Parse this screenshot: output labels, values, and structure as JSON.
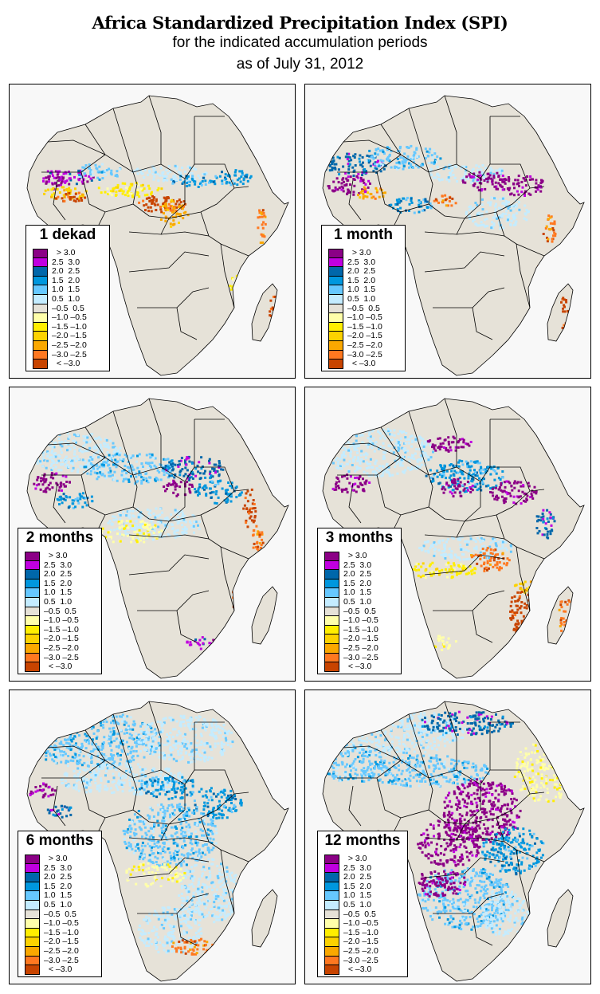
{
  "header": {
    "title": "Africa Standardized Precipitation Index (SPI)",
    "subtitle_line1": "for the indicated accumulation periods",
    "subtitle_line2": "as of July 31, 2012"
  },
  "colors": {
    "sea": "#f8f8f8",
    "land_near_normal": "#e6e2d8",
    "border_line": "#000000"
  },
  "legend": {
    "classes": [
      {
        "label": "  > 3.0",
        "color": "#8b0086"
      },
      {
        "label": "2.5  3.0",
        "color": "#c000e0"
      },
      {
        "label": "2.0  2.5",
        "color": "#0067aa"
      },
      {
        "label": "1.5  2.0",
        "color": "#0097de"
      },
      {
        "label": "1.0  1.5",
        "color": "#66c8ff"
      },
      {
        "label": "0.5  1.0",
        "color": "#c4ecff"
      },
      {
        "label": "–0.5  0.5",
        "color": "#e6e2d8"
      },
      {
        "label": "–1.0 –0.5",
        "color": "#ffffaa"
      },
      {
        "label": "–1.5 –1.0",
        "color": "#ffee00"
      },
      {
        "label": "–2.0 –1.5",
        "color": "#fcd200"
      },
      {
        "label": "–2.5 –2.0",
        "color": "#faa800"
      },
      {
        "label": "–3.0 –2.5",
        "color": "#ff7820"
      },
      {
        "label": "  < –3.0",
        "color": "#c84400"
      }
    ]
  },
  "panels": [
    {
      "label": "1 dekad",
      "period": "1 dekad"
    },
    {
      "label": "1 month",
      "period": "1 month"
    },
    {
      "label": "2 months",
      "period": "2 months"
    },
    {
      "label": "3 months",
      "period": "3 months"
    },
    {
      "label": "6 months",
      "period": "6 months"
    },
    {
      "label": "12 months",
      "period": "12 months"
    }
  ]
}
